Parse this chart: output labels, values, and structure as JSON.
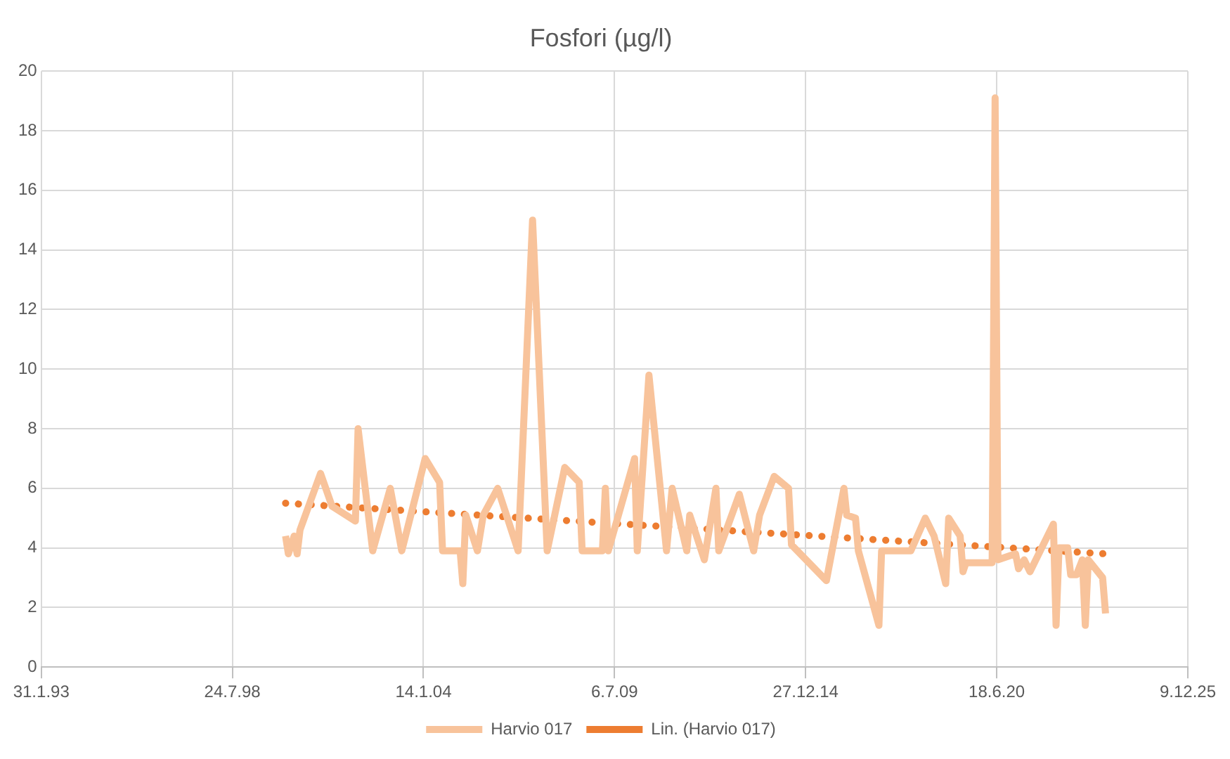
{
  "chart_data": {
    "type": "line",
    "title": "Fosfori (µg/l)",
    "series": [
      {
        "name": "Harvio 017",
        "color": "#f8c39b",
        "line_style": "solid",
        "marker": "none",
        "x": [
          "2000-02",
          "2000-03",
          "2000-05",
          "2000-06",
          "2000-07",
          "2001-02",
          "2001-06",
          "2002-02",
          "2002-03",
          "2002-08",
          "2003-02",
          "2003-06",
          "2004-02",
          "2004-07",
          "2004-08",
          "2005-02",
          "2005-03",
          "2005-04",
          "2005-08",
          "2005-10",
          "2006-03",
          "2006-10",
          "2007-03",
          "2007-08",
          "2008-02",
          "2008-07",
          "2008-08",
          "2009-03",
          "2009-04",
          "2009-05",
          "2010-02",
          "2010-03",
          "2010-07",
          "2011-01",
          "2011-03",
          "2011-08",
          "2011-09",
          "2012-02",
          "2012-06",
          "2012-07",
          "2013-02",
          "2013-07",
          "2013-09",
          "2014-02",
          "2014-07",
          "2014-08",
          "2015-08",
          "2016-02",
          "2016-03",
          "2016-06",
          "2016-07",
          "2017-02",
          "2017-03",
          "2018-01",
          "2018-06",
          "2018-09",
          "2019-01",
          "2019-02",
          "2019-06",
          "2019-07",
          "2019-08",
          "2020-05",
          "2020-06",
          "2020-07",
          "2021-01",
          "2021-02",
          "2021-04",
          "2021-06",
          "2022-02",
          "2022-03",
          "2022-04",
          "2022-07",
          "2022-08",
          "2022-10",
          "2022-12",
          "2023-01",
          "2023-02",
          "2023-07",
          "2023-08"
        ],
        "values": [
          4.4,
          3.8,
          4.4,
          3.8,
          4.6,
          6.5,
          5.4,
          4.9,
          8.0,
          3.9,
          6.0,
          3.9,
          7.0,
          6.2,
          3.9,
          3.9,
          2.8,
          5.1,
          3.9,
          5.1,
          6.0,
          3.9,
          15.0,
          3.9,
          6.7,
          6.2,
          3.9,
          3.9,
          6.0,
          3.9,
          7.0,
          3.9,
          9.8,
          3.9,
          6.0,
          3.9,
          5.1,
          3.6,
          6.0,
          3.9,
          5.8,
          3.9,
          5.1,
          6.4,
          6.0,
          4.1,
          2.9,
          6.0,
          5.1,
          5.0,
          3.9,
          1.4,
          3.9,
          3.9,
          5.0,
          4.4,
          2.8,
          5.0,
          4.4,
          3.2,
          3.5,
          3.5,
          19.1,
          3.6,
          3.8,
          3.3,
          3.6,
          3.2,
          4.8,
          1.4,
          4.0,
          4.0,
          3.1,
          3.1,
          3.6,
          1.4,
          3.6,
          3.0,
          1.8
        ]
      },
      {
        "name": "Lin. (Harvio 017)",
        "color": "#ed7d31",
        "line_style": "dotted",
        "marker": "none",
        "x": [
          "2000-02",
          "2023-08"
        ],
        "values": [
          5.5,
          3.8
        ]
      }
    ],
    "xlim": [
      "1993-01-31",
      "2025-12-09"
    ],
    "xticks": [
      {
        "value": "1993-01-31",
        "label": "31.1.93"
      },
      {
        "value": "1998-07-24",
        "label": "24.7.98"
      },
      {
        "value": "2004-01-14",
        "label": "14.1.04"
      },
      {
        "value": "2009-07-06",
        "label": "6.7.09"
      },
      {
        "value": "2014-12-27",
        "label": "27.12.14"
      },
      {
        "value": "2020-06-18",
        "label": "18.6.20"
      },
      {
        "value": "2025-12-09",
        "label": "9.12.25"
      }
    ],
    "ylim": [
      0,
      20
    ],
    "yticks": [
      0,
      2,
      4,
      6,
      8,
      10,
      12,
      14,
      16,
      18,
      20
    ],
    "grid": true,
    "legend": "bottom"
  }
}
